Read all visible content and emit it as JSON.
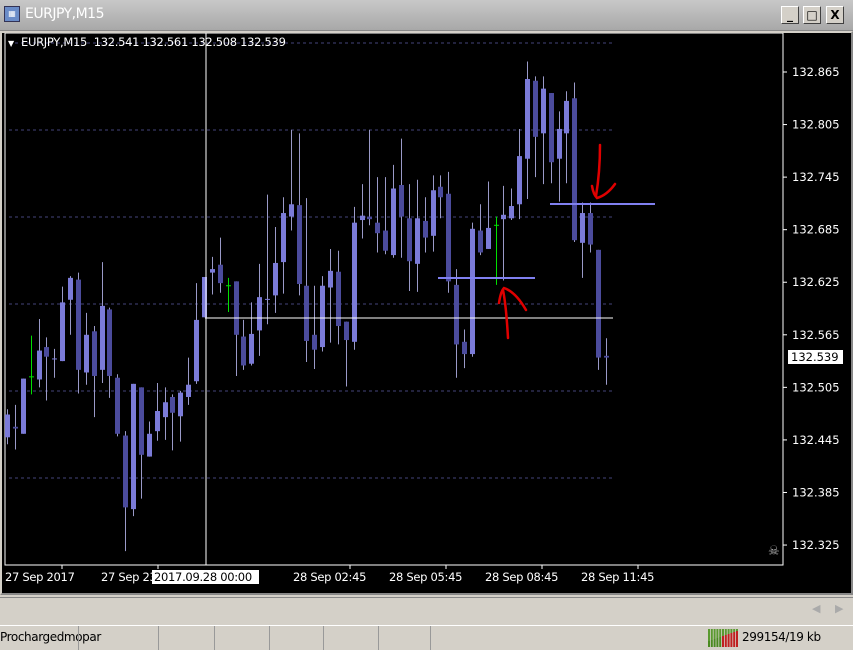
{
  "window": {
    "title": "EURJPY,M15",
    "minimize": "_",
    "maximize": "□",
    "close": "X"
  },
  "chart": {
    "info_line": "EURJPY,M15  132.541 132.561 132.508 132.539",
    "current_price": "132.539",
    "crosshair_time": "2017.09.28 00:00",
    "colors": {
      "background": "#000000",
      "bull": "#7b7bd8",
      "bear": "#4b4b9c",
      "doji": "#00e000",
      "grid": "#44447a",
      "annotation_line": "#8080f0",
      "arrow": "#e00000"
    },
    "annotations": {
      "support_level": 132.634,
      "resistance_level": 132.719,
      "crosshair_price": 132.58
    }
  },
  "chart_data": {
    "type": "candlestick",
    "symbol": "EURJPY",
    "timeframe": "M15",
    "y_ticks": [
      "132.865",
      "132.805",
      "132.745",
      "132.685",
      "132.625",
      "132.565",
      "132.505",
      "132.445",
      "132.385",
      "132.325"
    ],
    "ylim": [
      132.29,
      132.91
    ],
    "x_ticks": [
      "27 Sep 2017",
      "27 Sep 23:45",
      "28 Sep 02:45",
      "28 Sep 05:45",
      "28 Sep 08:45",
      "28 Sep 11:45"
    ],
    "ohlc": [
      [
        132.448,
        132.48,
        132.44,
        132.474
      ],
      [
        132.46,
        132.485,
        132.434,
        132.458
      ],
      [
        132.452,
        132.515,
        132.452,
        132.515
      ],
      [
        132.517,
        132.564,
        132.497,
        132.517
      ],
      [
        132.514,
        132.583,
        132.505,
        132.547
      ],
      [
        132.551,
        132.562,
        132.49,
        132.54
      ],
      [
        132.537,
        132.549,
        132.516,
        132.538
      ],
      [
        132.535,
        132.62,
        132.535,
        132.602
      ],
      [
        132.605,
        132.632,
        132.565,
        132.63
      ],
      [
        132.628,
        132.636,
        132.498,
        132.525
      ],
      [
        132.522,
        132.59,
        132.508,
        132.565
      ],
      [
        132.569,
        132.575,
        132.471,
        132.518
      ],
      [
        132.525,
        132.648,
        132.51,
        132.598
      ],
      [
        132.594,
        132.596,
        132.493,
        132.518
      ],
      [
        132.516,
        132.52,
        132.449,
        132.452
      ],
      [
        132.45,
        132.455,
        132.318,
        132.368
      ],
      [
        132.366,
        132.509,
        132.358,
        132.509
      ],
      [
        132.505,
        132.505,
        132.378,
        132.428
      ],
      [
        132.426,
        132.466,
        132.426,
        132.452
      ],
      [
        132.455,
        132.51,
        132.444,
        132.478
      ],
      [
        132.471,
        132.505,
        132.445,
        132.488
      ],
      [
        132.494,
        132.497,
        132.433,
        132.476
      ],
      [
        132.472,
        132.501,
        132.443,
        132.499
      ],
      [
        132.494,
        132.539,
        132.485,
        132.508
      ],
      [
        132.512,
        132.624,
        132.509,
        132.582
      ],
      [
        132.585,
        132.631,
        132.585,
        132.631
      ],
      [
        132.636,
        132.654,
        132.611,
        132.64
      ],
      [
        132.645,
        132.676,
        132.613,
        132.624
      ],
      [
        132.621,
        132.63,
        132.591,
        132.621
      ],
      [
        132.626,
        132.626,
        132.518,
        132.565
      ],
      [
        132.563,
        132.582,
        132.525,
        132.53
      ],
      [
        132.532,
        132.602,
        132.53,
        132.566
      ],
      [
        132.57,
        132.646,
        132.541,
        132.608
      ],
      [
        132.605,
        132.725,
        132.577,
        132.606
      ],
      [
        132.61,
        132.688,
        132.59,
        132.647
      ],
      [
        132.648,
        132.722,
        132.612,
        132.704
      ],
      [
        132.7,
        132.799,
        132.684,
        132.714
      ],
      [
        132.713,
        132.795,
        132.61,
        132.623
      ],
      [
        132.621,
        132.721,
        132.534,
        132.558
      ],
      [
        132.565,
        132.621,
        132.526,
        132.548
      ],
      [
        132.551,
        132.632,
        132.546,
        132.621
      ],
      [
        132.619,
        132.663,
        132.556,
        132.638
      ],
      [
        132.637,
        132.661,
        132.554,
        132.575
      ],
      [
        132.58,
        132.58,
        132.506,
        132.559
      ],
      [
        132.557,
        132.711,
        132.548,
        132.693
      ],
      [
        132.696,
        132.737,
        132.675,
        132.701
      ],
      [
        132.7,
        132.799,
        132.69,
        132.697
      ],
      [
        132.693,
        132.745,
        132.659,
        132.681
      ],
      [
        132.684,
        132.745,
        132.657,
        132.661
      ],
      [
        132.656,
        132.759,
        132.653,
        132.732
      ],
      [
        132.736,
        132.789,
        132.653,
        132.7
      ],
      [
        132.698,
        132.737,
        132.615,
        132.649
      ],
      [
        132.646,
        132.742,
        132.614,
        132.698
      ],
      [
        132.695,
        132.722,
        132.659,
        132.676
      ],
      [
        132.678,
        132.747,
        132.66,
        132.73
      ],
      [
        132.734,
        132.747,
        132.698,
        132.722
      ],
      [
        132.726,
        132.751,
        132.613,
        132.626
      ],
      [
        132.622,
        132.64,
        132.516,
        132.554
      ],
      [
        132.557,
        132.571,
        132.527,
        132.543
      ],
      [
        132.543,
        132.693,
        132.54,
        132.686
      ],
      [
        132.684,
        132.714,
        132.656,
        132.659
      ],
      [
        132.663,
        132.74,
        132.663,
        132.687
      ],
      [
        132.69,
        132.7,
        132.622,
        132.69
      ],
      [
        132.697,
        132.735,
        132.627,
        132.702
      ],
      [
        132.698,
        132.732,
        132.696,
        132.712
      ],
      [
        132.714,
        132.8,
        132.697,
        132.769
      ],
      [
        132.766,
        132.877,
        132.72,
        132.857
      ],
      [
        132.855,
        132.86,
        132.745,
        132.791
      ],
      [
        132.795,
        132.86,
        132.737,
        132.846
      ],
      [
        132.841,
        132.841,
        132.738,
        132.762
      ],
      [
        132.766,
        132.82,
        132.717,
        132.8
      ],
      [
        132.795,
        132.843,
        132.738,
        132.832
      ],
      [
        132.835,
        132.853,
        132.671,
        132.673
      ],
      [
        132.67,
        132.716,
        132.63,
        132.704
      ],
      [
        132.704,
        132.716,
        132.659,
        132.668
      ],
      [
        132.662,
        132.662,
        132.525,
        132.539
      ],
      [
        132.541,
        132.561,
        132.508,
        132.539
      ]
    ]
  },
  "status_bar": {
    "profile": "Prochargedmopar",
    "connection": "299154/19 kb",
    "scroll_left": "◀",
    "scroll_right": "▶"
  }
}
